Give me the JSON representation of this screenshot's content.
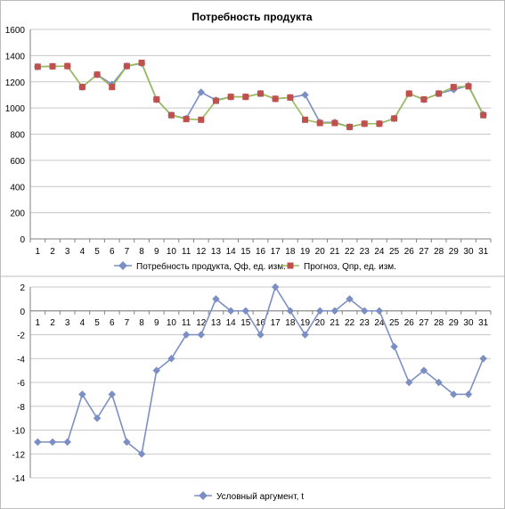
{
  "chart_data": [
    {
      "type": "line",
      "title": "Потребность продукта",
      "categories": [
        "1",
        "2",
        "3",
        "4",
        "5",
        "6",
        "7",
        "8",
        "9",
        "10",
        "11",
        "12",
        "13",
        "14",
        "15",
        "16",
        "17",
        "18",
        "19",
        "20",
        "21",
        "22",
        "23",
        "24",
        "25",
        "26",
        "27",
        "28",
        "29",
        "30",
        "31"
      ],
      "ylim": [
        0,
        1600
      ],
      "yticks": [
        "0",
        "200",
        "400",
        "600",
        "800",
        "1000",
        "1200",
        "1400",
        "1600"
      ],
      "grid": true,
      "legend_position": "bottom",
      "series": [
        {
          "name": "Потребность продукта, Qф, ед. изм.",
          "color": "#7b8fc4",
          "marker": "diamond",
          "values": [
            1315,
            1318,
            1320,
            1160,
            1255,
            1180,
            1320,
            1340,
            1065,
            945,
            920,
            1120,
            1060,
            1085,
            1085,
            1110,
            1070,
            1080,
            1100,
            890,
            890,
            855,
            880,
            880,
            920,
            1110,
            1065,
            1110,
            1140,
            1170,
            950
          ]
        },
        {
          "name": "Прогноз, Qпр, ед. изм.",
          "color": "#c0504d",
          "marker": "square",
          "line_color": "#9bbb59",
          "values": [
            1315,
            1318,
            1320,
            1160,
            1255,
            1160,
            1320,
            1345,
            1065,
            945,
            915,
            910,
            1055,
            1085,
            1085,
            1110,
            1070,
            1080,
            910,
            885,
            885,
            855,
            880,
            880,
            920,
            1110,
            1065,
            1110,
            1160,
            1165,
            945
          ]
        }
      ]
    },
    {
      "type": "line",
      "title": "",
      "categories": [
        "1",
        "2",
        "3",
        "4",
        "5",
        "6",
        "7",
        "8",
        "9",
        "10",
        "11",
        "12",
        "13",
        "14",
        "15",
        "16",
        "17",
        "18",
        "19",
        "20",
        "21",
        "22",
        "23",
        "24",
        "25",
        "26",
        "27",
        "28",
        "29",
        "30",
        "31"
      ],
      "ylim": [
        -14,
        2
      ],
      "yticks": [
        "-14",
        "-12",
        "-10",
        "-8",
        "-6",
        "-4",
        "-2",
        "0",
        "2"
      ],
      "grid": true,
      "legend_position": "bottom",
      "series": [
        {
          "name": "Условный аргумент, t",
          "color": "#7b8fc4",
          "marker": "diamond",
          "values": [
            -11,
            -11,
            -11,
            -7,
            -9,
            -7,
            -11,
            -12,
            -5,
            -4,
            -2,
            -2,
            1,
            0,
            0,
            -2,
            2,
            0,
            -2,
            0,
            0,
            1,
            0,
            0,
            -3,
            -6,
            -5,
            -6,
            -7,
            -7,
            -4
          ]
        }
      ]
    }
  ]
}
